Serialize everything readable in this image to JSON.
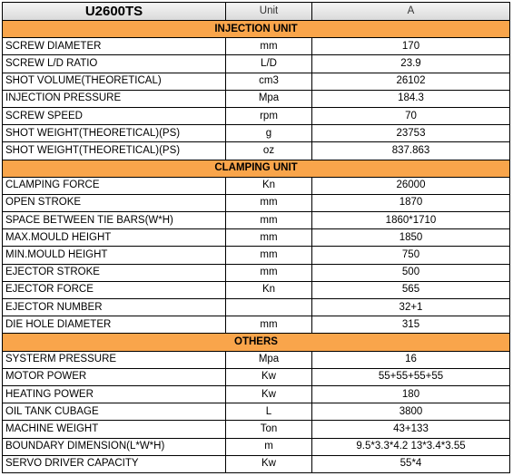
{
  "header": {
    "model": "U2600TS",
    "unit": "Unit",
    "value": "A"
  },
  "sections": [
    {
      "title": "INJECTION UNIT",
      "rows": [
        [
          "SCREW DIAMETER",
          "mm",
          "170"
        ],
        [
          "SCREW L/D RATIO",
          "L/D",
          "23.9"
        ],
        [
          "SHOT VOLUME(THEORETICAL)",
          "cm3",
          "26102"
        ],
        [
          "INJECTION PRESSURE",
          "Mpa",
          "184.3"
        ],
        [
          "SCREW SPEED",
          "rpm",
          "70"
        ],
        [
          "SHOT WEIGHT(THEORETICAL)(PS)",
          "g",
          "23753"
        ],
        [
          "SHOT WEIGHT(THEORETICAL)(PS)",
          "oz",
          "837.863"
        ]
      ]
    },
    {
      "title": "CLAMPING UNIT",
      "rows": [
        [
          "CLAMPING FORCE",
          "Kn",
          "26000"
        ],
        [
          "OPEN STROKE",
          "mm",
          "1870"
        ],
        [
          "SPACE BETWEEN TIE BARS(W*H)",
          "mm",
          "1860*1710"
        ],
        [
          "MAX.MOULD HEIGHT",
          "mm",
          "1850"
        ],
        [
          "MIN.MOULD HEIGHT",
          "mm",
          "750"
        ],
        [
          "EJECTOR STROKE",
          "mm",
          "500"
        ],
        [
          "EJECTOR FORCE",
          "Kn",
          "565"
        ],
        [
          "EJECTOR NUMBER",
          null,
          "32+1"
        ],
        [
          "DIE HOLE DIAMETER",
          "mm",
          "315"
        ]
      ]
    },
    {
      "title": "OTHERS",
      "rows": [
        [
          "SYSTERM PRESSURE",
          "Mpa",
          "16"
        ],
        [
          "MOTOR POWER",
          "Kw",
          "55+55+55+55"
        ],
        [
          "HEATING POWER",
          "Kw",
          "180"
        ],
        [
          "OIL TANK CUBAGE",
          "L",
          "3800"
        ],
        [
          "MACHINE WEIGHT",
          "Ton",
          "43+133"
        ],
        [
          "BOUNDARY DIMENSION(L*W*H)",
          "m",
          "9.5*3.3*4.2  13*3.4*3.55"
        ],
        [
          "SERVO DRIVER CAPACITY",
          "Kw",
          "55*4"
        ]
      ]
    }
  ]
}
